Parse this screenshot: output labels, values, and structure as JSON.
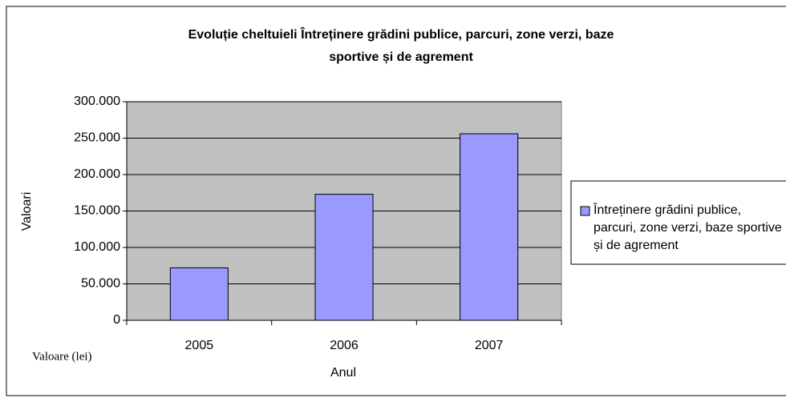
{
  "chart_data": {
    "type": "bar",
    "title": [
      "Evoluție cheltuieli Întreținere grădini publice, parcuri, zone verzi, baze",
      "sportive și de agrement"
    ],
    "x_label": "Anul",
    "y_label": "Valoari",
    "annotation": "Valoare (lei)",
    "categories": [
      "2005",
      "2006",
      "2007"
    ],
    "series": [
      {
        "name": "Întreținere grădini publice, parcuri, zone verzi, baze sportive și de agrement",
        "color": "#9999ff",
        "values": [
          72000,
          173000,
          256000
        ]
      }
    ],
    "ylim": [
      0,
      300000
    ],
    "yticks": [
      0,
      {
        "value": 50000,
        "label": "50.000"
      },
      {
        "value": 100000,
        "label": "100.000"
      },
      {
        "value": 150000,
        "label": "150.000"
      },
      {
        "value": 200000,
        "label": "200.000"
      },
      {
        "value": 250000,
        "label": "250.000"
      },
      {
        "value": 300000,
        "label": "300.000"
      }
    ],
    "grid": true,
    "legend": "right"
  }
}
